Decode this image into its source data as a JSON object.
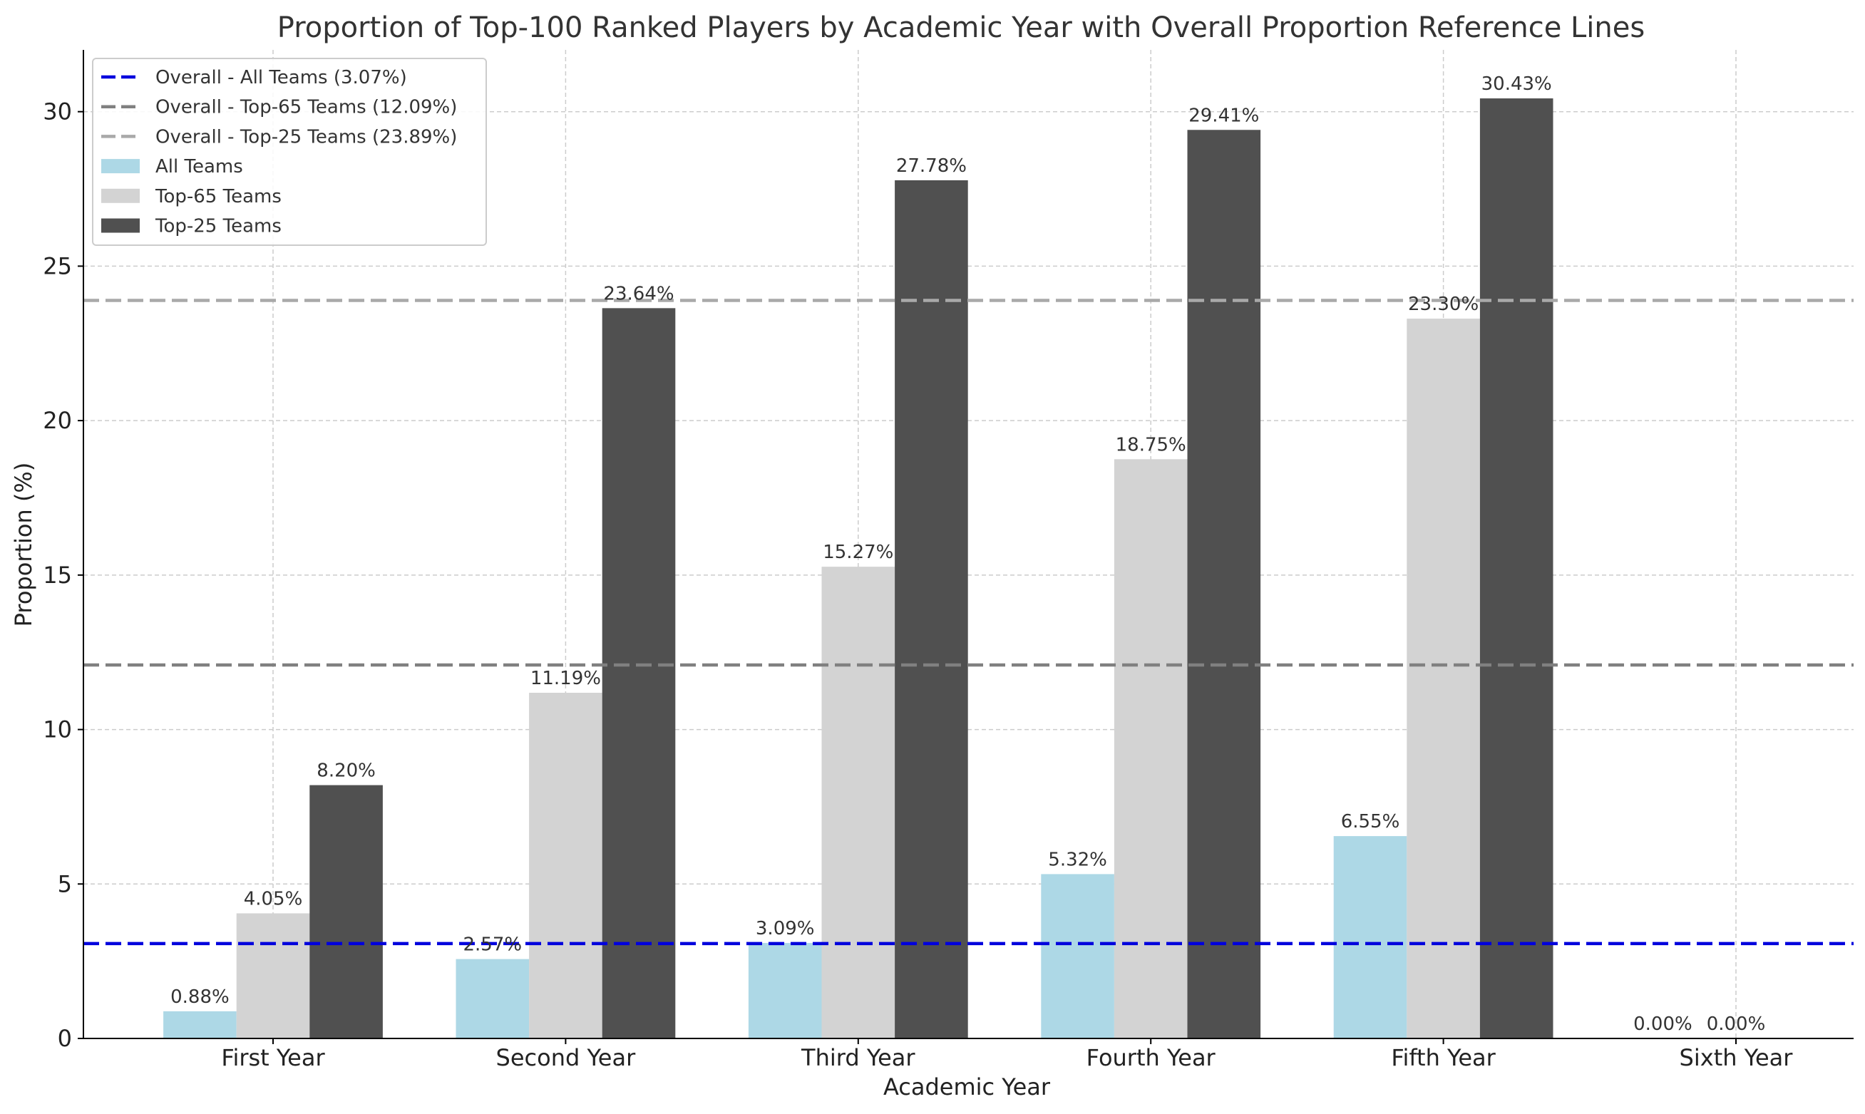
{
  "chart_data": {
    "type": "bar",
    "title": "Proportion of Top-100 Ranked Players by Academic Year with Overall Proportion Reference Lines",
    "xlabel": "Academic Year",
    "ylabel": "Proportion (%)",
    "ylim": [
      0,
      32
    ],
    "yticks": [
      0,
      5,
      10,
      15,
      20,
      25,
      30
    ],
    "grid": true,
    "legend_position": "top-left",
    "categories": [
      "First Year",
      "Second Year",
      "Third Year",
      "Fourth Year",
      "Fifth Year",
      "Sixth Year"
    ],
    "series": [
      {
        "name": "All Teams",
        "color": "#add8e6",
        "values": [
          0.88,
          2.57,
          3.09,
          5.32,
          6.55,
          0.0
        ],
        "labels": [
          "0.88%",
          "2.57%",
          "3.09%",
          "5.32%",
          "6.55%",
          "0.00%"
        ]
      },
      {
        "name": "Top-65 Teams",
        "color": "#d3d3d3",
        "values": [
          4.05,
          11.19,
          15.27,
          18.75,
          23.3,
          0.0
        ],
        "labels": [
          "4.05%",
          "11.19%",
          "15.27%",
          "18.75%",
          "23.30%",
          "0.00%"
        ]
      },
      {
        "name": "Top-25 Teams",
        "color": "#505050",
        "values": [
          8.2,
          23.64,
          27.78,
          29.41,
          30.43,
          null
        ],
        "labels": [
          "8.20%",
          "23.64%",
          "27.78%",
          "29.41%",
          "30.43%",
          null
        ]
      }
    ],
    "reference_lines": [
      {
        "name": "Overall - All Teams (3.07%)",
        "value": 3.07,
        "color": "#0000dd"
      },
      {
        "name": "Overall - Top-65 Teams (12.09%)",
        "value": 12.09,
        "color": "#808080"
      },
      {
        "name": "Overall - Top-25 Teams (23.89%)",
        "value": 23.89,
        "color": "#a9a9a9"
      }
    ]
  }
}
